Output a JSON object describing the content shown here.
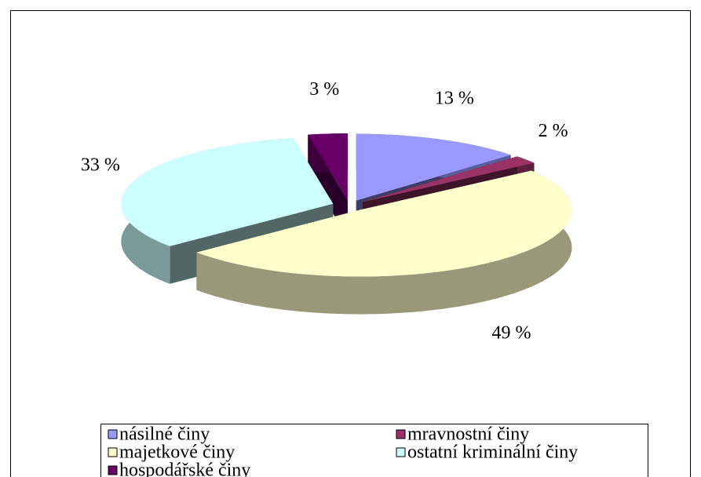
{
  "chart_data": {
    "type": "pie3d",
    "categories": [
      "násilné činy",
      "mravnostní činy",
      "majetkové činy",
      "ostatní kriminální činy",
      "hospodářské činy"
    ],
    "values": [
      13,
      2,
      49,
      33,
      3
    ],
    "value_labels": [
      "13 %",
      "2 %",
      "49 %",
      "33 %",
      "3 %"
    ],
    "colors": [
      "#9999ff",
      "#993366",
      "#ffffcc",
      "#ccffff",
      "#660066"
    ],
    "legend": "bottom"
  }
}
